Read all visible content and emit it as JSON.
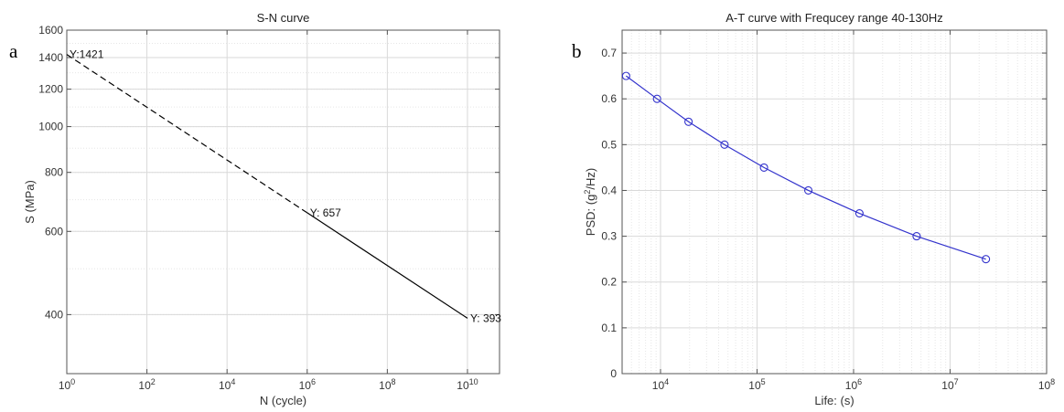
{
  "figure": {
    "panel_a_label": "a",
    "panel_b_label": "b"
  },
  "chart_data": [
    {
      "type": "line",
      "title": "S-N curve",
      "xlabel": "N (cycle)",
      "ylabel": "S (MPa)",
      "xscale": "log",
      "yscale": "log",
      "xlim": [
        1,
        10000000000
      ],
      "ylim": [
        300,
        1600
      ],
      "grid": true,
      "x_ticks": [
        {
          "value": 1,
          "base": "10",
          "exp": "0"
        },
        {
          "value": 100,
          "base": "10",
          "exp": "2"
        },
        {
          "value": 10000,
          "base": "10",
          "exp": "4"
        },
        {
          "value": 1000000,
          "base": "10",
          "exp": "6"
        },
        {
          "value": 100000000,
          "base": "10",
          "exp": "8"
        },
        {
          "value": 10000000000,
          "base": "10",
          "exp": "10"
        }
      ],
      "y_ticks": [
        {
          "value": 400,
          "label": "400"
        },
        {
          "value": 600,
          "label": "600"
        },
        {
          "value": 800,
          "label": "800"
        },
        {
          "value": 1000,
          "label": "1000"
        },
        {
          "value": 1200,
          "label": "1200"
        },
        {
          "value": 1400,
          "label": "1400"
        },
        {
          "value": 1600,
          "label": "1600"
        }
      ],
      "series": [
        {
          "style": "dashed",
          "color": "#000000",
          "x": [
            1,
            1000000
          ],
          "y": [
            1421,
            657
          ]
        },
        {
          "style": "solid",
          "color": "#000000",
          "x": [
            1000000,
            10000000000
          ],
          "y": [
            657,
            393
          ]
        }
      ],
      "annotations": [
        {
          "x": 1,
          "y": 1421,
          "text": "Y:1421"
        },
        {
          "x": 1000000,
          "y": 657,
          "text": "Y: 657"
        },
        {
          "x": 10000000000,
          "y": 393,
          "text": "Y: 393"
        }
      ]
    },
    {
      "type": "line",
      "title": "A-T curve with Frequcey range 40-130Hz",
      "xlabel": "Life: (s)",
      "ylabel_parts": [
        "PSD: (g",
        "2",
        "/Hz)"
      ],
      "xscale": "log",
      "yscale": "linear",
      "xlim": [
        4000,
        100000000
      ],
      "ylim": [
        0,
        0.75
      ],
      "grid": true,
      "x_ticks": [
        {
          "value": 10000,
          "base": "10",
          "exp": "4"
        },
        {
          "value": 100000,
          "base": "10",
          "exp": "5"
        },
        {
          "value": 1000000,
          "base": "10",
          "exp": "6"
        },
        {
          "value": 10000000,
          "base": "10",
          "exp": "7"
        },
        {
          "value": 100000000,
          "base": "10",
          "exp": "8"
        }
      ],
      "y_ticks": [
        {
          "value": 0,
          "label": "0"
        },
        {
          "value": 0.1,
          "label": "0.1"
        },
        {
          "value": 0.2,
          "label": "0.2"
        },
        {
          "value": 0.3,
          "label": "0.3"
        },
        {
          "value": 0.4,
          "label": "0.4"
        },
        {
          "value": 0.5,
          "label": "0.5"
        },
        {
          "value": 0.6,
          "label": "0.6"
        },
        {
          "value": 0.7,
          "label": "0.7"
        }
      ],
      "series": [
        {
          "color": "#3333cc",
          "marker": "circle",
          "x": [
            4400,
            9200,
            19500,
            46000,
            118000,
            340000,
            1150000,
            4500000,
            23500000
          ],
          "y": [
            0.65,
            0.6,
            0.55,
            0.5,
            0.45,
            0.4,
            0.35,
            0.3,
            0.25
          ]
        }
      ]
    }
  ]
}
